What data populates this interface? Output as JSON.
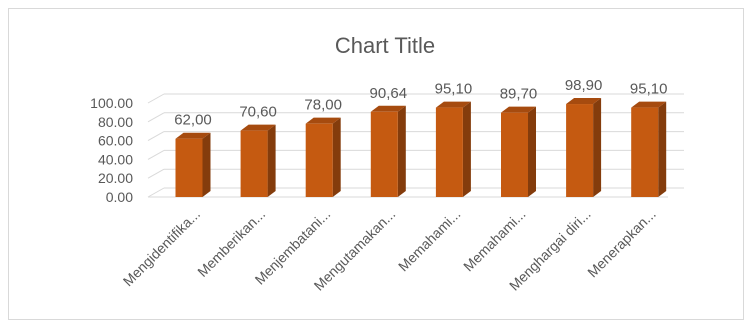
{
  "chart_data": {
    "type": "bar",
    "title": "Chart Title",
    "categories": [
      "Mengidentifika...",
      "Memberikan...",
      "Menjembatani...",
      "Mengutamakan...",
      "Memahami...",
      "Memahami...",
      "Menghargai diri...",
      "Menerapkan..."
    ],
    "values": [
      62.0,
      70.6,
      78.0,
      90.64,
      95.1,
      89.7,
      98.9,
      95.1
    ],
    "data_labels": [
      "62,00",
      "70,60",
      "78,00",
      "90,64",
      "95,10",
      "89,70",
      "98,90",
      "95,10"
    ],
    "y_ticks": [
      "0.00",
      "20.00",
      "40.00",
      "60.00",
      "80.00",
      "100.00"
    ],
    "ylim": [
      0,
      100
    ],
    "xlabel": "",
    "ylabel": "",
    "grid": true,
    "legend": "none",
    "style": "3d-column",
    "colors": {
      "bar_front": "#c55a11",
      "bar_side": "#843c0c",
      "bar_top": "#a64b0f",
      "grid": "#d9d9d9",
      "text": "#595959"
    }
  }
}
